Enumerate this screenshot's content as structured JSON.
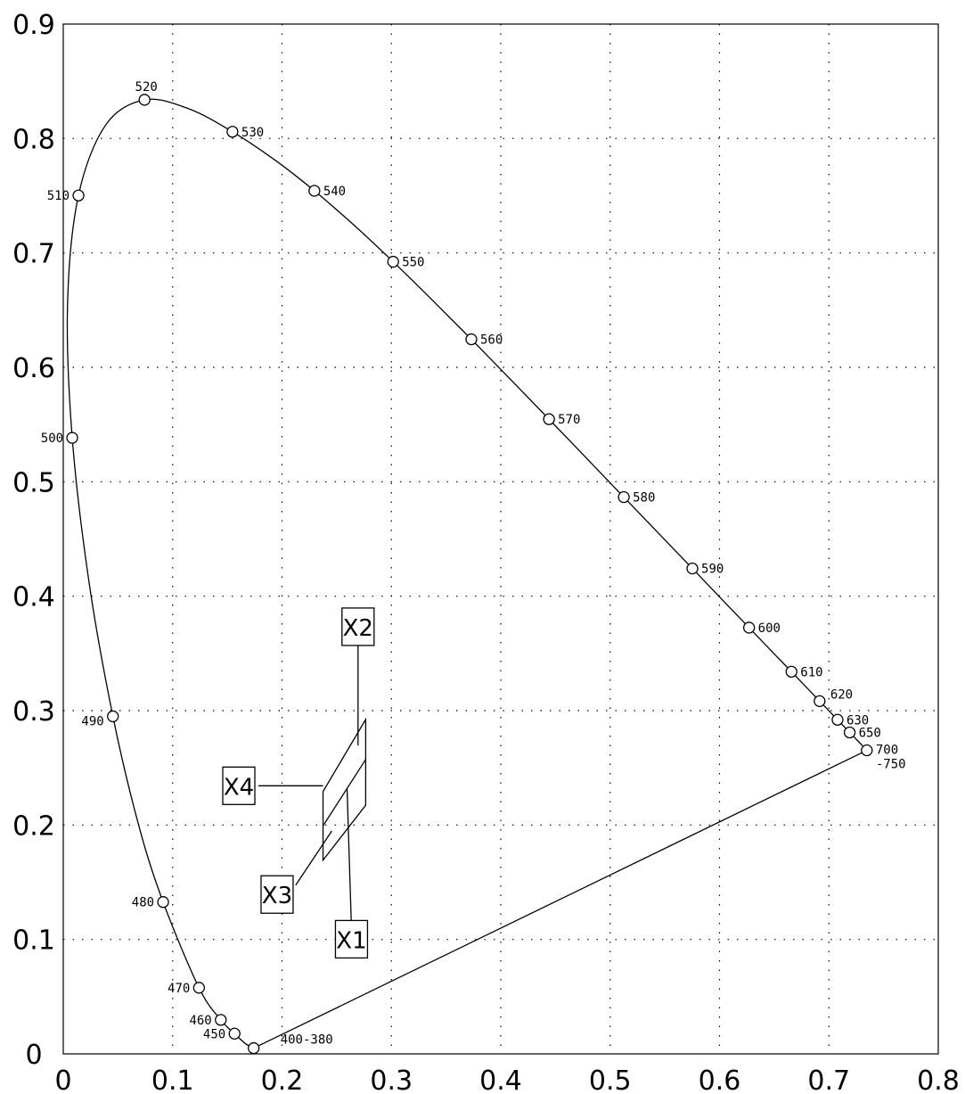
{
  "chart_data": {
    "type": "line",
    "title": "",
    "xlabel": "",
    "ylabel": "",
    "xlim": [
      0,
      0.8
    ],
    "ylim": [
      0,
      0.9
    ],
    "grid": true,
    "x_ticks": [
      {
        "value": 0,
        "label": "0"
      },
      {
        "value": 0.1,
        "label": "0.1"
      },
      {
        "value": 0.2,
        "label": "0.2"
      },
      {
        "value": 0.3,
        "label": "0.3"
      },
      {
        "value": 0.4,
        "label": "0.4"
      },
      {
        "value": 0.5,
        "label": "0.5"
      },
      {
        "value": 0.6,
        "label": "0.6"
      },
      {
        "value": 0.7,
        "label": "0.7"
      },
      {
        "value": 0.8,
        "label": "0.8"
      }
    ],
    "y_ticks": [
      {
        "value": 0,
        "label": "0"
      },
      {
        "value": 0.1,
        "label": "0.1"
      },
      {
        "value": 0.2,
        "label": "0.2"
      },
      {
        "value": 0.3,
        "label": "0.3"
      },
      {
        "value": 0.4,
        "label": "0.4"
      },
      {
        "value": 0.5,
        "label": "0.5"
      },
      {
        "value": 0.6,
        "label": "0.6"
      },
      {
        "value": 0.7,
        "label": "0.7"
      },
      {
        "value": 0.8,
        "label": "0.8"
      },
      {
        "value": 0.9,
        "label": "0.9"
      }
    ],
    "spectral_locus": [
      [
        0.1741,
        0.005
      ],
      [
        0.1666,
        0.0089
      ],
      [
        0.1566,
        0.0177
      ],
      [
        0.144,
        0.0297
      ],
      [
        0.1241,
        0.0578
      ],
      [
        0.0913,
        0.1327
      ],
      [
        0.0687,
        0.2007
      ],
      [
        0.0454,
        0.295
      ],
      [
        0.0235,
        0.4127
      ],
      [
        0.0082,
        0.5384
      ],
      [
        0.0039,
        0.6548
      ],
      [
        0.0139,
        0.7502
      ],
      [
        0.0389,
        0.812
      ],
      [
        0.0743,
        0.8338
      ],
      [
        0.1142,
        0.8262
      ],
      [
        0.1547,
        0.8059
      ],
      [
        0.1929,
        0.7816
      ],
      [
        0.2296,
        0.7543
      ],
      [
        0.2658,
        0.7243
      ],
      [
        0.3016,
        0.6923
      ],
      [
        0.3373,
        0.6589
      ],
      [
        0.3731,
        0.6245
      ],
      [
        0.4087,
        0.5896
      ],
      [
        0.4441,
        0.5547
      ],
      [
        0.4788,
        0.5202
      ],
      [
        0.5125,
        0.4866
      ],
      [
        0.5448,
        0.4544
      ],
      [
        0.5752,
        0.4242
      ],
      [
        0.6029,
        0.3965
      ],
      [
        0.627,
        0.3725
      ],
      [
        0.6482,
        0.3514
      ],
      [
        0.6658,
        0.334
      ],
      [
        0.6801,
        0.3197
      ],
      [
        0.6915,
        0.3083
      ],
      [
        0.7006,
        0.2993
      ],
      [
        0.7079,
        0.292
      ],
      [
        0.714,
        0.2859
      ],
      [
        0.719,
        0.2809
      ],
      [
        0.723,
        0.277
      ],
      [
        0.726,
        0.274
      ],
      [
        0.7347,
        0.2653
      ]
    ],
    "purple_line": [
      [
        0.7347,
        0.2653
      ],
      [
        0.1741,
        0.005
      ]
    ],
    "wavelength_markers": [
      {
        "label": "400-380",
        "x": 0.1741,
        "y": 0.005,
        "pos": "right-below"
      },
      {
        "label": "450",
        "x": 0.1566,
        "y": 0.0177,
        "pos": "left"
      },
      {
        "label": "460",
        "x": 0.144,
        "y": 0.0297,
        "pos": "left"
      },
      {
        "label": "470",
        "x": 0.1241,
        "y": 0.0578,
        "pos": "left"
      },
      {
        "label": "480",
        "x": 0.0913,
        "y": 0.1327,
        "pos": "left"
      },
      {
        "label": "490",
        "x": 0.0454,
        "y": 0.295,
        "pos": "left-below"
      },
      {
        "label": "500",
        "x": 0.0082,
        "y": 0.5384,
        "pos": "left"
      },
      {
        "label": "510",
        "x": 0.0139,
        "y": 0.7502,
        "pos": "left"
      },
      {
        "label": "520",
        "x": 0.0743,
        "y": 0.8338,
        "pos": "above"
      },
      {
        "label": "530",
        "x": 0.1547,
        "y": 0.8059,
        "pos": "right"
      },
      {
        "label": "540",
        "x": 0.2296,
        "y": 0.7543,
        "pos": "right"
      },
      {
        "label": "550",
        "x": 0.3016,
        "y": 0.6923,
        "pos": "right"
      },
      {
        "label": "560",
        "x": 0.3731,
        "y": 0.6245,
        "pos": "right"
      },
      {
        "label": "570",
        "x": 0.4441,
        "y": 0.5547,
        "pos": "right"
      },
      {
        "label": "580",
        "x": 0.5125,
        "y": 0.4866,
        "pos": "right"
      },
      {
        "label": "590",
        "x": 0.5752,
        "y": 0.4242,
        "pos": "right"
      },
      {
        "label": "600",
        "x": 0.627,
        "y": 0.3725,
        "pos": "right"
      },
      {
        "label": "610",
        "x": 0.6658,
        "y": 0.334,
        "pos": "right"
      },
      {
        "label": "620",
        "x": 0.6915,
        "y": 0.3083,
        "pos": "right-above"
      },
      {
        "label": "630",
        "x": 0.7079,
        "y": 0.292,
        "pos": "right"
      },
      {
        "label": "650",
        "x": 0.719,
        "y": 0.2809,
        "pos": "right"
      },
      {
        "label": "700 -750",
        "x": 0.7347,
        "y": 0.2653,
        "pos": "right-2line"
      }
    ],
    "quadrilaterals": [
      {
        "name": "outer",
        "points": [
          [
            0.2375,
            0.1693
          ],
          [
            0.2765,
            0.2173
          ],
          [
            0.2765,
            0.2923
          ],
          [
            0.2375,
            0.2293
          ]
        ]
      },
      {
        "name": "inner-diagonal",
        "points": [
          [
            0.2375,
            0.1993
          ],
          [
            0.2765,
            0.2573
          ]
        ]
      }
    ],
    "box_labels": [
      {
        "label": "X1",
        "box": [
          0.2635,
          0.1002
        ],
        "leader": [
          [
            0.2635,
            0.1095
          ],
          [
            0.2595,
            0.2315
          ]
        ]
      },
      {
        "label": "X2",
        "box": [
          0.2695,
          0.3733
        ],
        "leader": [
          [
            0.2695,
            0.3625
          ],
          [
            0.2695,
            0.2695
          ]
        ]
      },
      {
        "label": "X3",
        "box": [
          0.1955,
          0.1393
        ],
        "leader": [
          [
            0.2125,
            0.1475
          ],
          [
            0.2455,
            0.1948
          ]
        ]
      },
      {
        "label": "X4",
        "box": [
          0.1605,
          0.2343
        ],
        "leader": [
          [
            0.1785,
            0.2343
          ],
          [
            0.2375,
            0.2343
          ]
        ]
      }
    ]
  }
}
